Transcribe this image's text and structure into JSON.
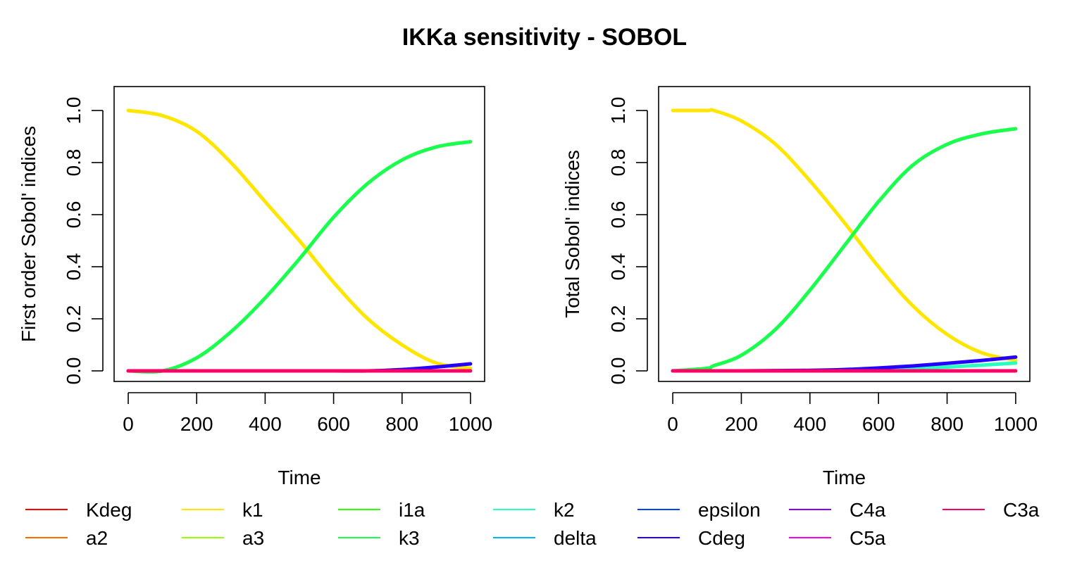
{
  "title": "IKKa sensitivity - SOBOL",
  "legend": [
    {
      "name": "Kdeg",
      "color": "#FF0000"
    },
    {
      "name": "a2",
      "color": "#FF6A00"
    },
    {
      "name": "k1",
      "color": "#FFE600"
    },
    {
      "name": "a3",
      "color": "#9AFF00"
    },
    {
      "name": "i1a",
      "color": "#33FF00"
    },
    {
      "name": "k3",
      "color": "#1AFF4D"
    },
    {
      "name": "k2",
      "color": "#2BFFC0"
    },
    {
      "name": "delta",
      "color": "#00B3FF"
    },
    {
      "name": "epsilon",
      "color": "#0040FF"
    },
    {
      "name": "Cdeg",
      "color": "#2600FF"
    },
    {
      "name": "C4a",
      "color": "#8A00FF"
    },
    {
      "name": "C5a",
      "color": "#FF00E6"
    },
    {
      "name": "C3a",
      "color": "#FF0066"
    }
  ],
  "chart_data": [
    {
      "type": "line",
      "xlabel": "Time",
      "ylabel": "First order Sobol' indices",
      "xlim": [
        0,
        1000
      ],
      "ylim": [
        0,
        1.05
      ],
      "xticks": [
        0,
        200,
        400,
        600,
        800,
        1000
      ],
      "yticks": [
        0.0,
        0.2,
        0.4,
        0.6,
        0.8,
        1.0
      ],
      "ytick_labels": [
        "0.0",
        "0.2",
        "0.4",
        "0.6",
        "0.8",
        "1.0"
      ],
      "grid": false,
      "x": [
        0,
        100,
        200,
        300,
        400,
        500,
        600,
        700,
        800,
        900,
        1000
      ],
      "series": [
        {
          "name": "k1",
          "color": "#FFE600",
          "values": [
            1.0,
            0.98,
            0.92,
            0.8,
            0.65,
            0.5,
            0.34,
            0.2,
            0.1,
            0.03,
            0.01
          ]
        },
        {
          "name": "k3",
          "color": "#1AFF4D",
          "values": [
            0.0,
            0.0,
            0.05,
            0.15,
            0.28,
            0.43,
            0.59,
            0.72,
            0.81,
            0.86,
            0.88
          ]
        },
        {
          "name": "Cdeg",
          "color": "#2600FF",
          "values": [
            0,
            0,
            0,
            0,
            0,
            0,
            0,
            0,
            0.005,
            0.015,
            0.027
          ]
        },
        {
          "name": "C3a",
          "color": "#FF0066",
          "values": [
            0,
            0,
            0,
            0,
            0,
            0,
            0,
            0,
            0,
            0,
            0
          ]
        }
      ]
    },
    {
      "type": "line",
      "xlabel": "Time",
      "ylabel": "Total Sobol' indices",
      "xlim": [
        0,
        1000
      ],
      "ylim": [
        0,
        1.05
      ],
      "xticks": [
        0,
        200,
        400,
        600,
        800,
        1000
      ],
      "yticks": [
        0.0,
        0.2,
        0.4,
        0.6,
        0.8,
        1.0
      ],
      "ytick_labels": [
        "0.0",
        "0.2",
        "0.4",
        "0.6",
        "0.8",
        "1.0"
      ],
      "grid": false,
      "x": [
        0,
        100,
        120,
        200,
        300,
        400,
        500,
        600,
        700,
        800,
        900,
        1000
      ],
      "series": [
        {
          "name": "k1",
          "color": "#FFE600",
          "values": [
            1.0,
            1.0,
            1.0,
            0.96,
            0.87,
            0.73,
            0.57,
            0.4,
            0.25,
            0.14,
            0.07,
            0.04
          ]
        },
        {
          "name": "k3",
          "color": "#1AFF4D",
          "values": [
            0.0,
            0.01,
            0.02,
            0.06,
            0.16,
            0.31,
            0.48,
            0.65,
            0.79,
            0.87,
            0.91,
            0.93
          ]
        },
        {
          "name": "k2",
          "color": "#2BFFC0",
          "values": [
            0,
            0,
            0,
            0,
            0,
            0.001,
            0.003,
            0.006,
            0.01,
            0.015,
            0.022,
            0.03
          ]
        },
        {
          "name": "Cdeg",
          "color": "#2600FF",
          "values": [
            0,
            0,
            0,
            0,
            0.001,
            0.002,
            0.005,
            0.011,
            0.019,
            0.029,
            0.04,
            0.053
          ]
        },
        {
          "name": "C3a",
          "color": "#FF0066",
          "values": [
            0,
            0,
            0,
            0,
            0,
            0,
            0,
            0,
            0,
            0,
            0,
            0
          ]
        }
      ]
    }
  ]
}
